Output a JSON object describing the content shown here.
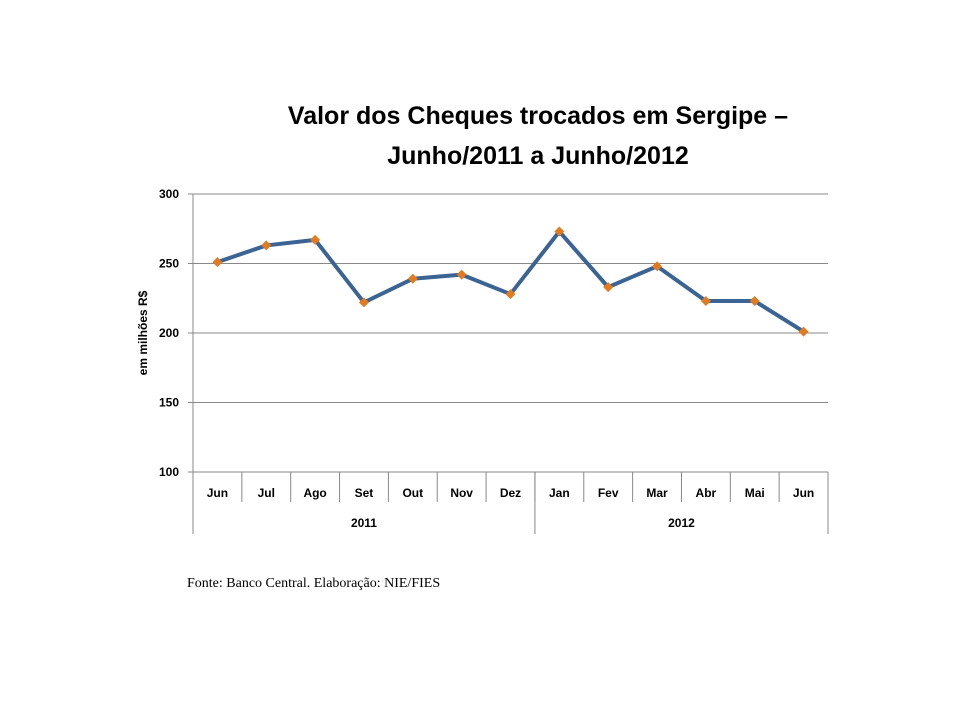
{
  "chart_data": {
    "type": "line",
    "title_line1": "Valor dos Cheques trocados em Sergipe –",
    "title_line2": "Junho/2011 a Junho/2012",
    "ylabel": "em milhões R$",
    "xlabel": "",
    "ylim": [
      100,
      300
    ],
    "yticks": [
      "100",
      "150",
      "200",
      "250",
      "300"
    ],
    "ytick_values": [
      100,
      150,
      200,
      250,
      300
    ],
    "categories": [
      "Jun",
      "Jul",
      "Ago",
      "Set",
      "Out",
      "Nov",
      "Dez",
      "Jan",
      "Fev",
      "Mar",
      "Abr",
      "Mai",
      "Jun"
    ],
    "groups": [
      {
        "label": "2011",
        "count": 7
      },
      {
        "label": "2012",
        "count": 6
      }
    ],
    "series": [
      {
        "name": "Valor dos Cheques",
        "values": [
          251,
          263,
          267,
          222,
          239,
          242,
          228,
          273,
          233,
          248,
          223,
          223,
          201
        ]
      }
    ],
    "grid": true,
    "line_color": "#3B6494",
    "marker_color": "#E07B22"
  },
  "source": "Fonte: Banco Central. Elaboração: NIE/FIES"
}
